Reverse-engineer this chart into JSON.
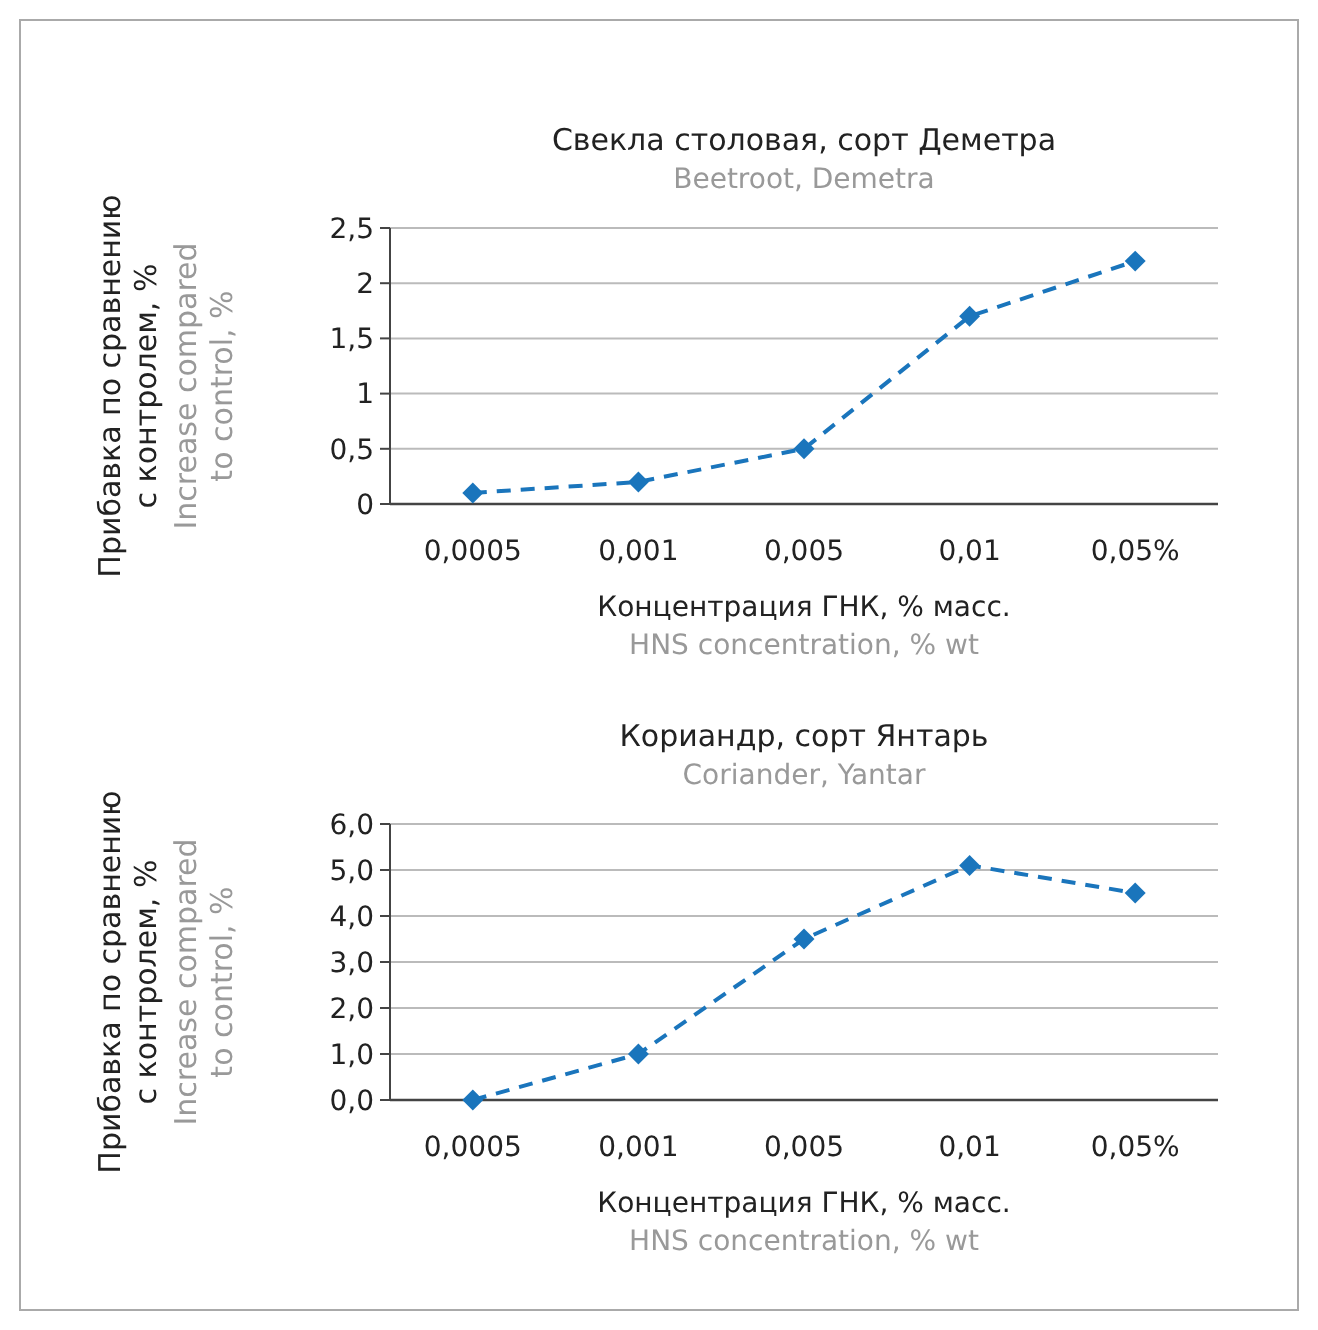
{
  "chart_data": [
    {
      "type": "line",
      "title": "Свекла столовая, сорт Деметра",
      "subtitle": "Beetroot, Demetra",
      "xlabel": "Концентрация ГНК, % масс.",
      "ylabel": "Прибавка по сравнению\nс контролем, %",
      "annotations": [
        "Increase compared\nto control, %",
        "HNS concentration, % wt"
      ],
      "categories": [
        "0,0005",
        "0,001",
        "0,005",
        "0,01",
        "0,05%"
      ],
      "series": [
        {
          "color": "#1a75bc",
          "values": [
            0.1,
            0.2,
            0.5,
            1.7,
            2.2
          ]
        }
      ],
      "ylim": [
        0,
        2.5
      ],
      "yticks": [
        {
          "value": 0,
          "label": "0"
        },
        {
          "value": 0.5,
          "label": "0,5"
        },
        {
          "value": 1,
          "label": "1"
        },
        {
          "value": 1.5,
          "label": "1,5"
        },
        {
          "value": 2,
          "label": "2"
        },
        {
          "value": 2.5,
          "label": "2,5"
        }
      ],
      "grid": "y",
      "marker": "diamond",
      "line_style": "dashed"
    },
    {
      "type": "line",
      "title": "Кориандр, сорт Янтарь",
      "subtitle": "Coriander, Yantar",
      "xlabel": "Концентрация ГНК, % масс.",
      "ylabel": "Прибавка по сравнению\nс контролем, %",
      "annotations": [
        "Increase compared\nto control, %",
        "HNS concentration, % wt"
      ],
      "categories": [
        "0,0005",
        "0,001",
        "0,005",
        "0,01",
        "0,05%"
      ],
      "series": [
        {
          "color": "#1a75bc",
          "values": [
            0,
            1.0,
            3.5,
            5.1,
            4.5
          ]
        }
      ],
      "ylim": [
        0,
        6
      ],
      "yticks": [
        {
          "value": 0,
          "label": "0,0"
        },
        {
          "value": 1,
          "label": "1,0"
        },
        {
          "value": 2,
          "label": "2,0"
        },
        {
          "value": 3,
          "label": "3,0"
        },
        {
          "value": 4,
          "label": "4,0"
        },
        {
          "value": 5,
          "label": "5,0"
        },
        {
          "value": 6,
          "label": "6,0"
        }
      ],
      "grid": "y",
      "marker": "diamond",
      "line_style": "dashed"
    }
  ]
}
